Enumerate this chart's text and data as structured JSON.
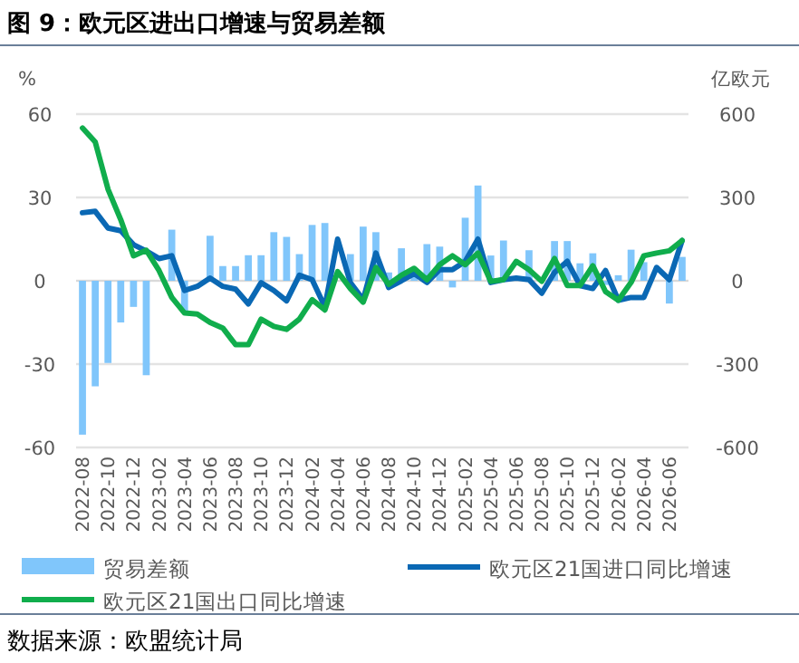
{
  "chart_data": {
    "type": "bar",
    "title": "图 9：欧元区进出口增速与贸易差额",
    "ylabel": "%",
    "y2label": "亿欧元",
    "categories": [
      "2022-08",
      null,
      "2022-10",
      null,
      "2022-12",
      null,
      "2023-02",
      null,
      "2023-04",
      null,
      "2023-06",
      null,
      "2023-08",
      null,
      "2023-10",
      null,
      "2023-12",
      null,
      "2024-02",
      null,
      "2024-04",
      null,
      "2024-06",
      null,
      "2024-08",
      null,
      "2024-10",
      null,
      "2024-12",
      null,
      "2025-02",
      null,
      "2025-04",
      null,
      "2025-06",
      null,
      "2025-08",
      null,
      "2025-10",
      null,
      "2025-12",
      null,
      "2026-02",
      null,
      "2026-04",
      null,
      "2026-06",
      null
    ],
    "series": [
      {
        "name": "贸易差额",
        "axis": "y2",
        "color": "#80c6fb",
        "values": [
          -554,
          -380,
          -296,
          -150,
          -94,
          -340,
          0,
          184,
          -116,
          0,
          162,
          53,
          53,
          92,
          92,
          175,
          158,
          96,
          201,
          208,
          null,
          96,
          195,
          175,
          30,
          117,
          20,
          132,
          123,
          -24,
          227,
          343,
          91,
          145,
          null,
          110,
          null,
          143,
          143,
          63,
          99,
          -15,
          20,
          112,
          67,
          null,
          -82,
          86
        ]
      },
      {
        "name": "欧元区21国进口同比增速",
        "type": "line",
        "color": "#0a68b4",
        "values": [
          24.5,
          25,
          19,
          18,
          13,
          10.7,
          8,
          9,
          -3.5,
          -2,
          1,
          -2,
          -3,
          -8.3,
          -0.7,
          -3.5,
          -7.2,
          2,
          0.4,
          -9.4,
          15,
          -0.7,
          -6.8,
          10,
          -2.4,
          0,
          2.6,
          -0.6,
          4,
          4,
          7,
          15,
          -0.6,
          0.4,
          1,
          0.4,
          -4.5,
          3,
          7,
          -1.7,
          -2.8,
          3.7,
          -7,
          -6,
          -6,
          4.8,
          0.4,
          14.5
        ]
      },
      {
        "name": "欧元区21国出口同比增速",
        "type": "line",
        "color": "#10ad4c",
        "values": [
          55,
          50,
          33,
          22,
          9,
          11,
          3.7,
          -6,
          -11.6,
          -12,
          -15,
          -17,
          -23,
          -23,
          -13.8,
          -16.4,
          -17.5,
          -13.8,
          -6.8,
          -10.5,
          3.3,
          -2.8,
          -7.7,
          4.8,
          -1.3,
          2,
          4.5,
          0.4,
          5.8,
          9,
          5.8,
          10,
          -0.2,
          0.4,
          7,
          4,
          -0.2,
          8,
          -1.7,
          -1.7,
          5.4,
          -3.9,
          -7,
          -0.6,
          9,
          10,
          10.8,
          14.5
        ]
      }
    ],
    "ylim": [
      -60,
      60
    ],
    "yticks": [
      -60,
      -30,
      0,
      30,
      60
    ],
    "y2lim": [
      -600,
      600
    ],
    "y2ticks": [
      -600,
      -300,
      0,
      300,
      600
    ],
    "grid": "y",
    "legend": "bottom",
    "annotations": [
      "数据来源：欧盟统计局"
    ]
  }
}
